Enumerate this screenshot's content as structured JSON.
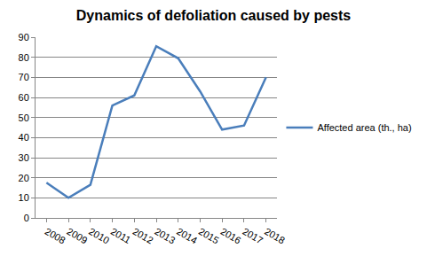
{
  "chart_data": {
    "type": "line",
    "title": "Dynamics of defoliation caused by pests",
    "categories": [
      "2008",
      "2009",
      "2010",
      "2011",
      "2012",
      "2013",
      "2014",
      "2015",
      "2016",
      "2017",
      "2018"
    ],
    "series": [
      {
        "name": "Affected area (th., ha)",
        "color": "#4a7ebb",
        "values": [
          17.5,
          10,
          16.5,
          56,
          61,
          85.5,
          79.5,
          63,
          44,
          46,
          70
        ]
      }
    ],
    "ylim": [
      0,
      90
    ],
    "yticks": [
      0,
      10,
      20,
      30,
      40,
      50,
      60,
      70,
      80,
      90
    ],
    "grid": true,
    "legend": "right",
    "marker": "none",
    "line_style": "solid"
  }
}
